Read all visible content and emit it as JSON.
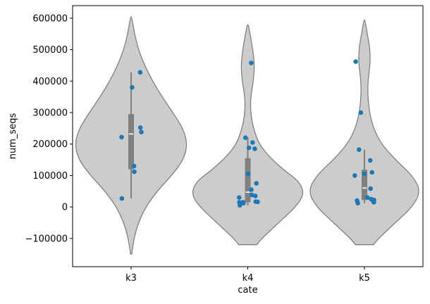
{
  "chart_data": {
    "type": "violin",
    "xlabel": "cate",
    "ylabel": "num_seqs",
    "categories": [
      "k3",
      "k4",
      "k5"
    ],
    "ylim": [
      -190000,
      640000
    ],
    "yticks": [
      -100000,
      0,
      100000,
      200000,
      300000,
      400000,
      500000,
      600000
    ],
    "ytick_labels": [
      "−100000",
      "0",
      "100000",
      "200000",
      "300000",
      "400000",
      "500000",
      "600000"
    ],
    "grid": false,
    "colors": {
      "violin_fill": "#cccccc",
      "violin_edge": "#808080",
      "box": "#808080",
      "median": "#ffffff",
      "points": "#1f77b4"
    },
    "series": [
      {
        "category": "k3",
        "points": [
          27000,
          112000,
          130000,
          222000,
          238000,
          252000,
          380000,
          428000
        ],
        "box": {
          "q1": 120000,
          "median": 232000,
          "q3": 295000,
          "whisker_low": 27000,
          "whisker_high": 428000
        },
        "density": [
          [
            -150000,
            0.01
          ],
          [
            -100000,
            0.05
          ],
          [
            -50000,
            0.13
          ],
          [
            0,
            0.26
          ],
          [
            50000,
            0.46
          ],
          [
            100000,
            0.72
          ],
          [
            150000,
            0.93
          ],
          [
            200000,
            1.0
          ],
          [
            250000,
            0.92
          ],
          [
            300000,
            0.74
          ],
          [
            350000,
            0.55
          ],
          [
            400000,
            0.38
          ],
          [
            450000,
            0.24
          ],
          [
            500000,
            0.13
          ],
          [
            550000,
            0.06
          ],
          [
            605000,
            0.01
          ]
        ]
      },
      {
        "category": "k4",
        "points": [
          5000,
          12000,
          15000,
          15000,
          16000,
          17000,
          30000,
          35000,
          38000,
          55000,
          75000,
          105000,
          185000,
          188000,
          205000,
          220000,
          458000
        ],
        "box": {
          "q1": 15000,
          "median": 47000,
          "q3": 155000,
          "whisker_low": 5000,
          "whisker_high": 220000
        },
        "density": [
          [
            -120000,
            0.16
          ],
          [
            -100000,
            0.25
          ],
          [
            -50000,
            0.55
          ],
          [
            0,
            0.85
          ],
          [
            40000,
            1.0
          ],
          [
            80000,
            0.92
          ],
          [
            120000,
            0.62
          ],
          [
            160000,
            0.38
          ],
          [
            200000,
            0.2
          ],
          [
            250000,
            0.1
          ],
          [
            300000,
            0.05
          ],
          [
            350000,
            0.05
          ],
          [
            400000,
            0.1
          ],
          [
            450000,
            0.12
          ],
          [
            500000,
            0.09
          ],
          [
            550000,
            0.04
          ],
          [
            580000,
            0.01
          ]
        ]
      },
      {
        "category": "k5",
        "points": [
          12000,
          15000,
          18000,
          20000,
          22000,
          25000,
          30000,
          58000,
          100000,
          105000,
          110000,
          148000,
          182000,
          300000,
          462000
        ],
        "box": {
          "q1": 22000,
          "median": 60000,
          "q3": 118000,
          "whisker_low": 12000,
          "whisker_high": 182000
        },
        "density": [
          [
            -120000,
            0.16
          ],
          [
            -100000,
            0.25
          ],
          [
            -50000,
            0.55
          ],
          [
            0,
            0.85
          ],
          [
            50000,
            1.0
          ],
          [
            100000,
            0.85
          ],
          [
            150000,
            0.55
          ],
          [
            200000,
            0.3
          ],
          [
            250000,
            0.16
          ],
          [
            300000,
            0.09
          ],
          [
            350000,
            0.06
          ],
          [
            400000,
            0.06
          ],
          [
            450000,
            0.1
          ],
          [
            500000,
            0.1
          ],
          [
            550000,
            0.05
          ],
          [
            595000,
            0.01
          ]
        ]
      }
    ]
  }
}
